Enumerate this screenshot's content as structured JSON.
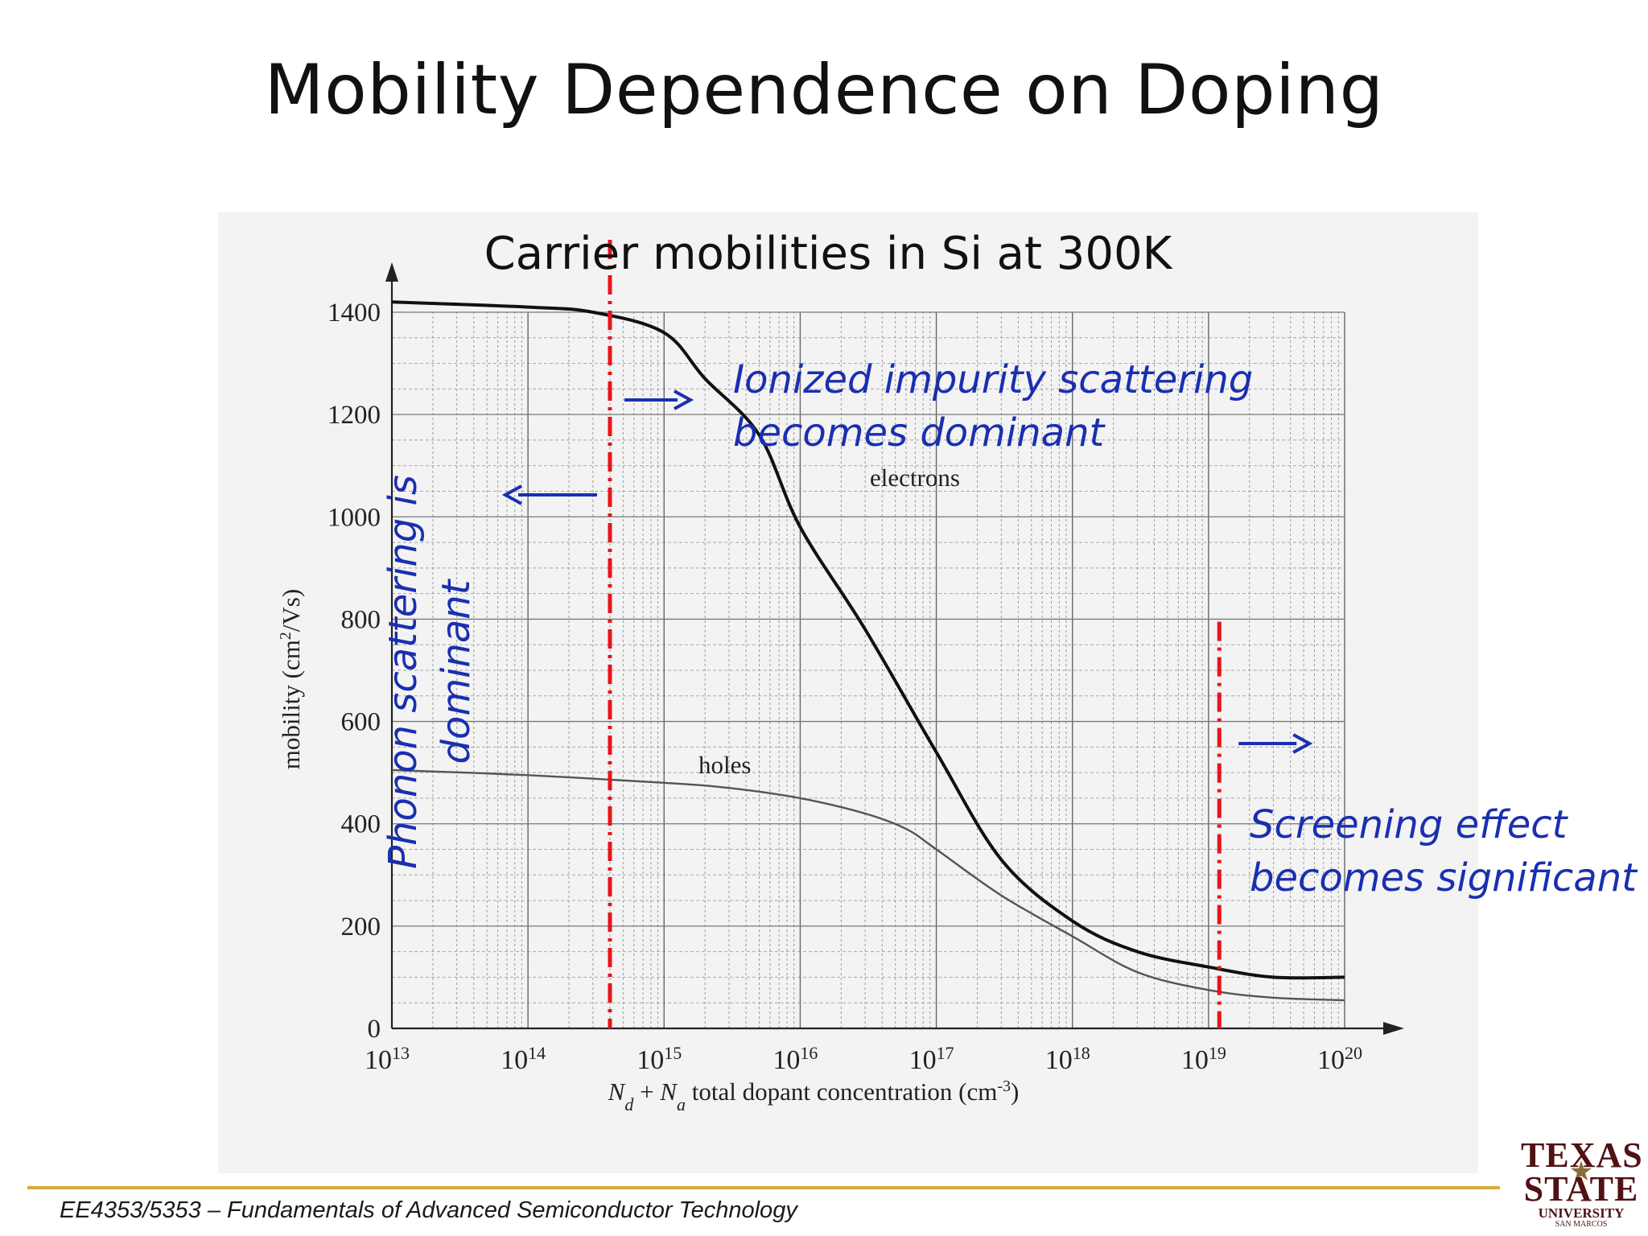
{
  "slide": {
    "title": "Mobility Dependence on Doping",
    "footer_course": "EE4353/5353",
    "footer_sep": " – ",
    "footer_subject": "Fundamentals of Advanced Semiconductor Technology"
  },
  "logo": {
    "line1": "TEXAS",
    "line2": "STATE",
    "line3": "UNIVERSITY",
    "line4": "SAN MARCOS",
    "icon": "star-icon"
  },
  "annotations": {
    "phonon": "Phonon scattering is dominant",
    "ionized": "Ionized impurity scattering\nbecomes dominant",
    "screening": "Screening effect\nbecomes significant",
    "colors": {
      "annotation_text": "#1a2fb0",
      "arrows": "#1a2fb0",
      "divider_lines": "#e8141b"
    }
  },
  "chart_data": {
    "type": "line",
    "title": "Carrier mobilities in Si at 300K",
    "xlabel_parts": [
      "N",
      "d",
      " + ",
      "N",
      "a",
      " total dopant concentration (cm",
      "-3",
      ")"
    ],
    "ylabel_parts": [
      "mobility (cm",
      "2",
      "/Vs)"
    ],
    "x_scale": "log",
    "xlim": [
      10000000000000.0,
      1e+20
    ],
    "ylim": [
      0,
      1400
    ],
    "y_ticks": [
      0,
      200,
      400,
      600,
      800,
      1000,
      1200,
      1400
    ],
    "x_tick_exponents": [
      13,
      14,
      15,
      16,
      17,
      18,
      19,
      20
    ],
    "x_tick_base": "10",
    "grid": true,
    "series": [
      {
        "name": "electrons",
        "color": "#111111",
        "x": [
          10000000000000.0,
          100000000000000.0,
          300000000000000.0,
          1000000000000000.0,
          2000000000000000.0,
          5000000000000000.0,
          1e+16,
          3e+16,
          1e+17,
          3e+17,
          1e+18,
          3e+18,
          1e+19,
          3e+19,
          1e+20
        ],
        "y": [
          1420,
          1410,
          1400,
          1360,
          1270,
          1160,
          980,
          780,
          540,
          330,
          210,
          150,
          120,
          100,
          100
        ]
      },
      {
        "name": "holes",
        "color": "#555555",
        "x": [
          10000000000000.0,
          100000000000000.0,
          1000000000000000.0,
          3000000000000000.0,
          1e+16,
          3e+16,
          6e+16,
          1e+17,
          3e+17,
          1e+18,
          3e+18,
          1e+19,
          3e+19,
          1e+20
        ],
        "y": [
          505,
          495,
          480,
          470,
          450,
          420,
          390,
          350,
          260,
          180,
          110,
          75,
          60,
          55
        ]
      }
    ],
    "dividers_x": [
      400000000000000.0,
      1.2e+19
    ]
  }
}
